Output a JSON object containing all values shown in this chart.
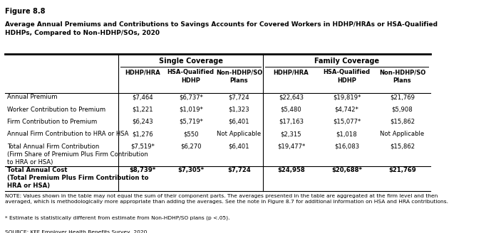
{
  "figure_label": "Figure 8.8",
  "title": "Average Annual Premiums and Contributions to Savings Accounts for Covered Workers in HDHP/HRAs or HSA-Qualified\nHDHPs, Compared to Non-HDHP/SOs, 2020",
  "single_coverage_label": "Single Coverage",
  "family_coverage_label": "Family Coverage",
  "col_headers": [
    "HDHP/HRA",
    "HSA-Qualified\nHDHP",
    "Non-HDHP/SO\nPlans",
    "HDHP/HRA",
    "HSA-Qualified\nHDHP",
    "Non-HDHP/SO\nPlans"
  ],
  "row_labels": [
    "Annual Premium",
    "Worker Contribution to Premium",
    "Firm Contribution to Premium",
    "Annual Firm Contribution to HRA or HSA",
    "Total Annual Firm Contribution\n(Firm Share of Premium Plus Firm Contribution\nto HRA or HSA)",
    "Total Annual Cost\n(Total Premium Plus Firm Contribution to\nHRA or HSA)"
  ],
  "row_bold": [
    false,
    false,
    false,
    false,
    false,
    true
  ],
  "data": [
    [
      "$7,464",
      "$6,737*",
      "$7,724",
      "$22,643",
      "$19,819*",
      "$21,769"
    ],
    [
      "$1,221",
      "$1,019*",
      "$1,323",
      "$5,480",
      "$4,742*",
      "$5,908"
    ],
    [
      "$6,243",
      "$5,719*",
      "$6,401",
      "$17,163",
      "$15,077*",
      "$15,862"
    ],
    [
      "$1,276",
      "$550",
      "Not Applicable",
      "$2,315",
      "$1,018",
      "Not Applicable"
    ],
    [
      "$7,519*",
      "$6,270",
      "$6,401",
      "$19,477*",
      "$16,083",
      "$15,862"
    ],
    [
      "$8,739*",
      "$7,305*",
      "$7,724",
      "$24,958",
      "$20,688*",
      "$21,769"
    ]
  ],
  "data_bold": [
    [
      false,
      false,
      false,
      false,
      false,
      false
    ],
    [
      false,
      false,
      false,
      false,
      false,
      false
    ],
    [
      false,
      false,
      false,
      false,
      false,
      false
    ],
    [
      false,
      false,
      false,
      false,
      false,
      false
    ],
    [
      false,
      false,
      false,
      false,
      false,
      false
    ],
    [
      true,
      true,
      false,
      false,
      true,
      false
    ]
  ],
  "note": "NOTE: Values shown in the table may not equal the sum of their component parts. The averages presented in the table are aggregated at the firm level and then\naveraged, which is methodologically more appropriate than adding the averages. See the note in Figure 8.7 for additional information on HSA and HRA contributions.",
  "footnote": "* Estimate is statistically different from estimate from Non-HDHP/SO plans (p <.05).",
  "source": "SOURCE: KFF Employer Health Benefits Survey, 2020"
}
